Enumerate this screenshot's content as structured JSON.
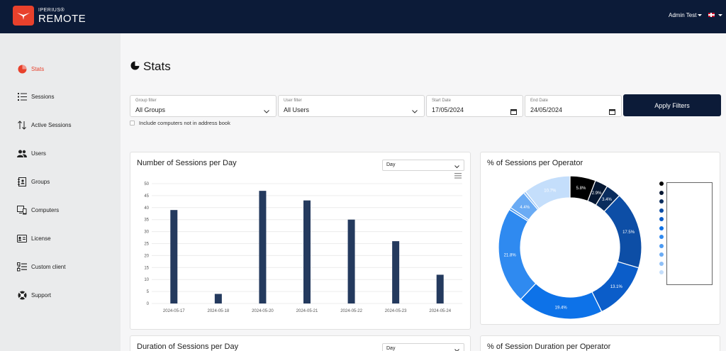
{
  "brand": {
    "top": "IPERIUS®",
    "name": "REMOTE"
  },
  "header": {
    "user": "Admin Test"
  },
  "sidebar": {
    "items": [
      {
        "label": "Stats",
        "icon": "pie-chart-icon",
        "active": true
      },
      {
        "label": "Sessions",
        "icon": "list-icon"
      },
      {
        "label": "Active Sessions",
        "icon": "arrows-updown-icon"
      },
      {
        "label": "Users",
        "icon": "users-icon"
      },
      {
        "label": "Groups",
        "icon": "address-book-icon"
      },
      {
        "label": "Computers",
        "icon": "devices-icon"
      },
      {
        "label": "License",
        "icon": "id-card-icon"
      },
      {
        "label": "Custom client",
        "icon": "checklist-icon"
      },
      {
        "label": "Support",
        "icon": "lifebuoy-icon"
      }
    ]
  },
  "page": {
    "title": "Stats"
  },
  "filters": {
    "group": {
      "label": "Group filter",
      "value": "All Groups"
    },
    "user": {
      "label": "User filter",
      "value": "All Users"
    },
    "start": {
      "label": "Start Date",
      "value": "17/05/2024"
    },
    "end": {
      "label": "End Date",
      "value": "24/05/2024"
    },
    "apply": "Apply Filters",
    "include_label": "Include computers not in address book"
  },
  "cards": {
    "sessions_per_day": {
      "title": "Number of Sessions per Day",
      "period": "Day"
    },
    "sessions_per_operator": {
      "title": "% of Sessions per Operator"
    },
    "duration_per_day": {
      "title": "Duration of Sessions per Day",
      "period": "Day"
    },
    "duration_per_operator": {
      "title": "% of Session Duration per Operator"
    }
  },
  "colors": {
    "accent": "#e8412c",
    "navy": "#0c1b38",
    "bar": "#243a5e"
  },
  "chart_data": [
    {
      "type": "bar",
      "title": "Number of Sessions per Day",
      "categories": [
        "2024-05-17",
        "2024-05-18",
        "2024-05-20",
        "2024-05-21",
        "2024-05-22",
        "2024-05-23",
        "2024-05-24"
      ],
      "values": [
        39,
        4,
        47,
        43,
        35,
        26,
        12
      ],
      "yticks": [
        0,
        5,
        10,
        15,
        20,
        25,
        30,
        35,
        40,
        45,
        50
      ],
      "ylim": [
        0,
        50
      ],
      "grid": true
    },
    {
      "type": "pie",
      "title": "% of Sessions per Operator",
      "donut": true,
      "slices": [
        {
          "value": 5.8,
          "label": "5.8%",
          "color": "#000000"
        },
        {
          "value": 2.9,
          "label": "2.9%",
          "color": "#061833"
        },
        {
          "value": 3.4,
          "label": "3.4%",
          "color": "#0a2d5e"
        },
        {
          "value": 17.5,
          "label": "17.5%",
          "color": "#0d4ea6"
        },
        {
          "value": 13.1,
          "label": "13.1%",
          "color": "#0b5dc9"
        },
        {
          "value": 19.4,
          "label": "19.4%",
          "color": "#0d72e8"
        },
        {
          "value": 21.8,
          "label": "21.8%",
          "color": "#2f8af0"
        },
        {
          "value": 0.5,
          "label": "",
          "color": "#4b9af2"
        },
        {
          "value": 4.4,
          "label": "4.4%",
          "color": "#6aabf4"
        },
        {
          "value": 0.5,
          "label": "",
          "color": "#8fc0f7"
        },
        {
          "value": 10.7,
          "label": "10.7%",
          "color": "#c4defb"
        }
      ],
      "legend_position": "right"
    }
  ]
}
